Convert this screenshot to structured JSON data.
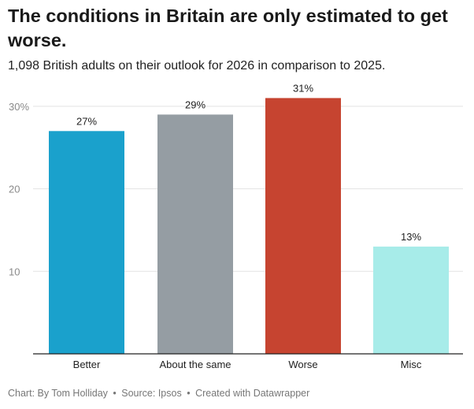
{
  "header": {
    "title": "The conditions in Britain are only estimated to get worse.",
    "subtitle": "1,098 British adults on their outlook for 2026 in comparison to 2025."
  },
  "footer": {
    "chart_by": "Chart: By Tom Holliday",
    "source": "Source: Ipsos",
    "created_with": "Created with Datawrapper",
    "separator": "•"
  },
  "colors": {
    "better": "#1aa1cc",
    "same": "#959da3",
    "worse": "#c64430",
    "misc": "#a7ece9",
    "gridline": "#e3e3e3",
    "axis": "#222222",
    "tick_label": "#8a8a8a"
  },
  "chart_data": {
    "type": "bar",
    "categories": [
      "Better",
      "About the same",
      "Worse",
      "Misc"
    ],
    "values": [
      27,
      29,
      31,
      13
    ],
    "value_labels": [
      "27%",
      "29%",
      "31%",
      "13%"
    ],
    "title": "The conditions in Britain are only estimated to get worse.",
    "xlabel": "",
    "ylabel": "",
    "ylim": [
      0,
      30
    ],
    "y_ticks": [
      10,
      20,
      30
    ],
    "y_tick_labels": [
      "10",
      "20",
      "30%"
    ],
    "grid": true
  }
}
